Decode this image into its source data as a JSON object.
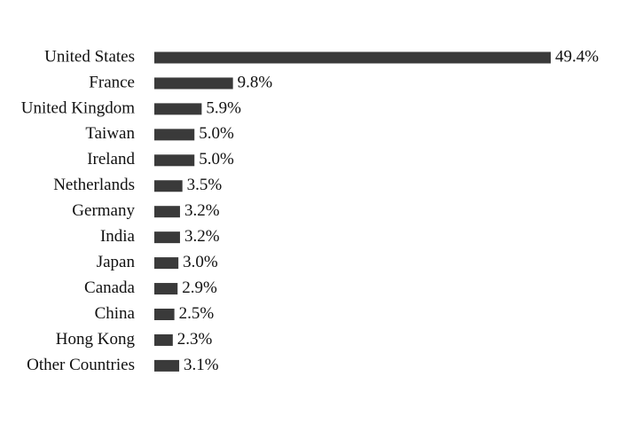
{
  "chart_data": {
    "type": "barh",
    "color": "#3a3a3a",
    "categories": [
      "United States",
      "France",
      "United Kingdom",
      "Taiwan",
      "Ireland",
      "Netherlands",
      "Germany",
      "India",
      "Japan",
      "Canada",
      "China",
      "Hong Kong",
      "Other Countries"
    ],
    "values": [
      49.4,
      9.8,
      5.9,
      5.0,
      5.0,
      3.5,
      3.2,
      3.2,
      3.0,
      2.9,
      2.5,
      2.3,
      3.1
    ],
    "value_labels": [
      "49.4%",
      "9.8%",
      "5.9%",
      "5.0%",
      "5.0%",
      "3.5%",
      "3.2%",
      "3.2%",
      "3.0%",
      "2.9%",
      "2.5%",
      "2.3%",
      "3.1%"
    ]
  }
}
